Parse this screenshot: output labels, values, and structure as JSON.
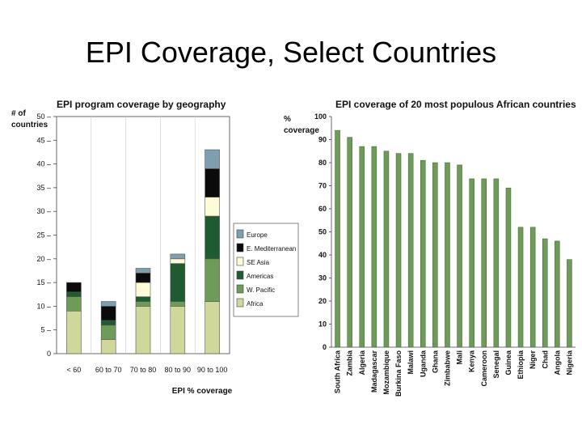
{
  "slide": {
    "title": "EPI Coverage, Select Countries"
  },
  "chart_data": [
    {
      "type": "bar",
      "stacked": true,
      "title": "EPI program coverage by geography",
      "xlabel": "EPI % coverage",
      "ylabel": "# of countries",
      "ylim": [
        0,
        50
      ],
      "yticks": [
        0,
        5,
        10,
        15,
        20,
        25,
        30,
        35,
        40,
        45,
        50
      ],
      "categories": [
        "< 60",
        "60 to 70",
        "70 to 80",
        "80 to 90",
        "90 to 100"
      ],
      "legend_position": "right",
      "series": [
        {
          "name": "Africa",
          "color": "#cfd79a",
          "values": [
            9,
            3,
            10,
            10,
            11
          ]
        },
        {
          "name": "W. Pacific",
          "color": "#6e9b58",
          "values": [
            3,
            3,
            1,
            1,
            9
          ]
        },
        {
          "name": "Americas",
          "color": "#1f5b30",
          "values": [
            1,
            1,
            1,
            8,
            9
          ]
        },
        {
          "name": "SE Asia",
          "color": "#fdfbd8",
          "values": [
            0,
            0,
            3,
            1,
            4
          ]
        },
        {
          "name": "E. Mediterranean",
          "color": "#0b0b0b",
          "values": [
            2,
            3,
            2,
            0,
            6
          ]
        },
        {
          "name": "Europe",
          "color": "#7e9fb0",
          "values": [
            0,
            1,
            1,
            1,
            4
          ]
        }
      ],
      "legend_order": [
        "Europe",
        "E. Mediterranean",
        "SE Asia",
        "Americas",
        "W. Pacific",
        "Africa"
      ]
    },
    {
      "type": "bar",
      "title": "EPI coverage of 20 most populous African countries",
      "ylabel": "% coverage",
      "ylim": [
        0,
        100
      ],
      "yticks": [
        0,
        10,
        20,
        30,
        40,
        50,
        60,
        70,
        80,
        90,
        100
      ],
      "bar_color": "#6e9b58",
      "categories": [
        "South Africa",
        "Zambia",
        "Algeria",
        "Madagascar",
        "Mozambique",
        "Burkina Faso",
        "Malawi",
        "Uganda",
        "Ghana",
        "Zimbabwe",
        "Mali",
        "Kenya",
        "Cameroon",
        "Senegal",
        "Guinea",
        "Ethiopia",
        "Niger",
        "Chad",
        "Angola",
        "Nigeria"
      ],
      "values": [
        94,
        91,
        87,
        87,
        85,
        84,
        84,
        81,
        80,
        80,
        79,
        73,
        73,
        73,
        69,
        52,
        52,
        47,
        46,
        38
      ]
    }
  ]
}
